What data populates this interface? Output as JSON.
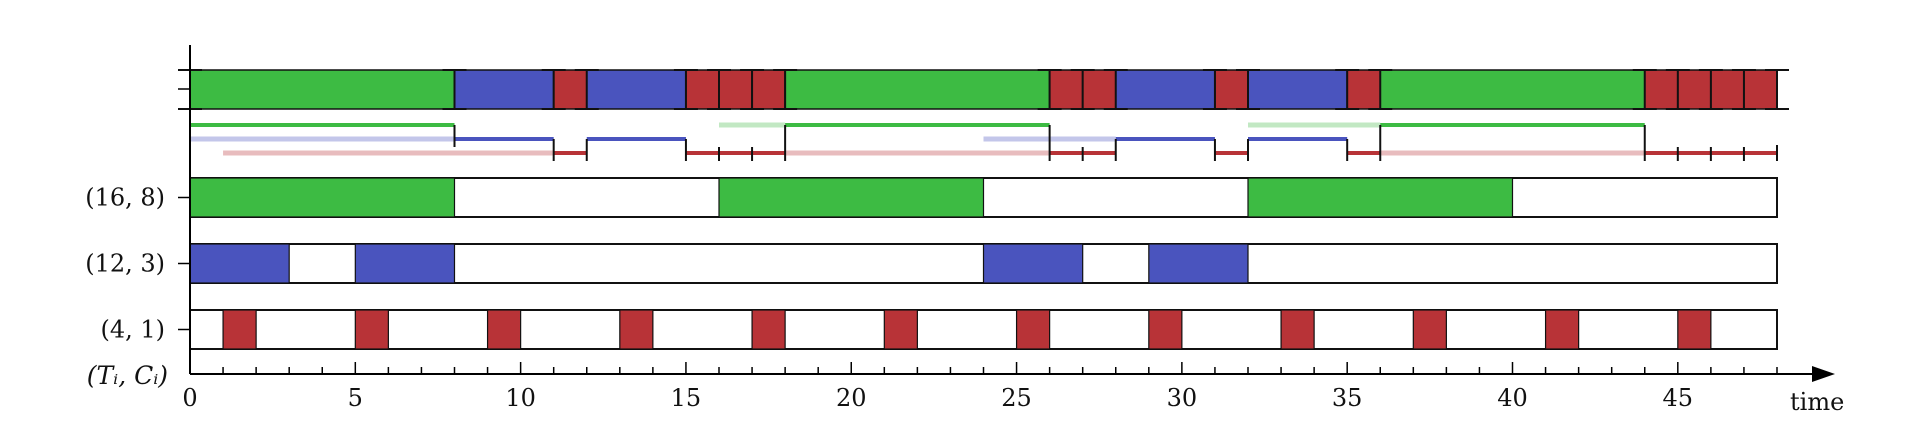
{
  "chart_data": {
    "type": "gantt",
    "title": "",
    "xlabel": "time",
    "ylabel": "(Tᵢ, Cᵢ)",
    "xlim": [
      0,
      48
    ],
    "x_major_ticks": [
      0,
      5,
      10,
      15,
      20,
      25,
      30,
      35,
      40,
      45
    ],
    "x_tick_labels": [
      "0",
      "5",
      "10",
      "15",
      "20",
      "25",
      "30",
      "35",
      "40",
      "45"
    ],
    "colors": {
      "green": "#3dbb43",
      "blue": "#4a54be",
      "red": "#b83337"
    },
    "tasks": [
      {
        "label": "(16, 8)",
        "color": "green",
        "intervals": [
          [
            0,
            8
          ],
          [
            16,
            24
          ],
          [
            32,
            40
          ]
        ]
      },
      {
        "label": "(12, 3)",
        "color": "blue",
        "intervals": [
          [
            0,
            3
          ],
          [
            5,
            8
          ],
          [
            24,
            27
          ],
          [
            29,
            32
          ]
        ]
      },
      {
        "label": "(4, 1)",
        "color": "red",
        "intervals": [
          [
            1,
            2
          ],
          [
            5,
            6
          ],
          [
            9,
            10
          ],
          [
            13,
            14
          ],
          [
            17,
            18
          ],
          [
            21,
            22
          ],
          [
            25,
            26
          ],
          [
            29,
            30
          ],
          [
            33,
            34
          ],
          [
            37,
            38
          ],
          [
            41,
            42
          ],
          [
            45,
            46
          ]
        ]
      }
    ],
    "schedule": [
      {
        "task": "green",
        "start": 0,
        "end": 8
      },
      {
        "task": "blue",
        "start": 8,
        "end": 11
      },
      {
        "task": "red",
        "start": 11,
        "end": 12
      },
      {
        "task": "blue",
        "start": 12,
        "end": 15
      },
      {
        "task": "red",
        "start": 15,
        "end": 16
      },
      {
        "task": "red",
        "start": 16,
        "end": 17
      },
      {
        "task": "red",
        "start": 17,
        "end": 18
      },
      {
        "task": "green",
        "start": 18,
        "end": 26
      },
      {
        "task": "red",
        "start": 26,
        "end": 27
      },
      {
        "task": "red",
        "start": 27,
        "end": 28
      },
      {
        "task": "blue",
        "start": 28,
        "end": 31
      },
      {
        "task": "red",
        "start": 31,
        "end": 32
      },
      {
        "task": "blue",
        "start": 32,
        "end": 35
      },
      {
        "task": "red",
        "start": 35,
        "end": 36
      },
      {
        "task": "green",
        "start": 36,
        "end": 44
      },
      {
        "task": "red",
        "start": 44,
        "end": 45
      },
      {
        "task": "red",
        "start": 45,
        "end": 46
      },
      {
        "task": "red",
        "start": 46,
        "end": 47
      },
      {
        "task": "red",
        "start": 47,
        "end": 48
      }
    ],
    "response_lines": [
      {
        "task": "green",
        "level": 1,
        "light": [],
        "dark": [
          [
            0,
            8
          ],
          [
            18,
            26
          ],
          [
            36,
            44
          ]
        ],
        "faint": [
          [
            16,
            18
          ],
          [
            32,
            36
          ]
        ]
      },
      {
        "task": "blue",
        "level": 2,
        "light": [
          [
            0,
            8
          ],
          [
            24,
            28
          ]
        ],
        "dark": [
          [
            8,
            11
          ],
          [
            12,
            15
          ],
          [
            28,
            31
          ],
          [
            32,
            35
          ]
        ],
        "faint": []
      },
      {
        "task": "red",
        "level": 3,
        "light": [
          [
            1,
            11
          ],
          [
            18,
            26
          ],
          [
            36,
            44
          ]
        ],
        "dark": [
          [
            11,
            12
          ],
          [
            15,
            18
          ],
          [
            26,
            28
          ],
          [
            31,
            32
          ],
          [
            35,
            36
          ],
          [
            44,
            48
          ]
        ],
        "faint": []
      }
    ]
  }
}
